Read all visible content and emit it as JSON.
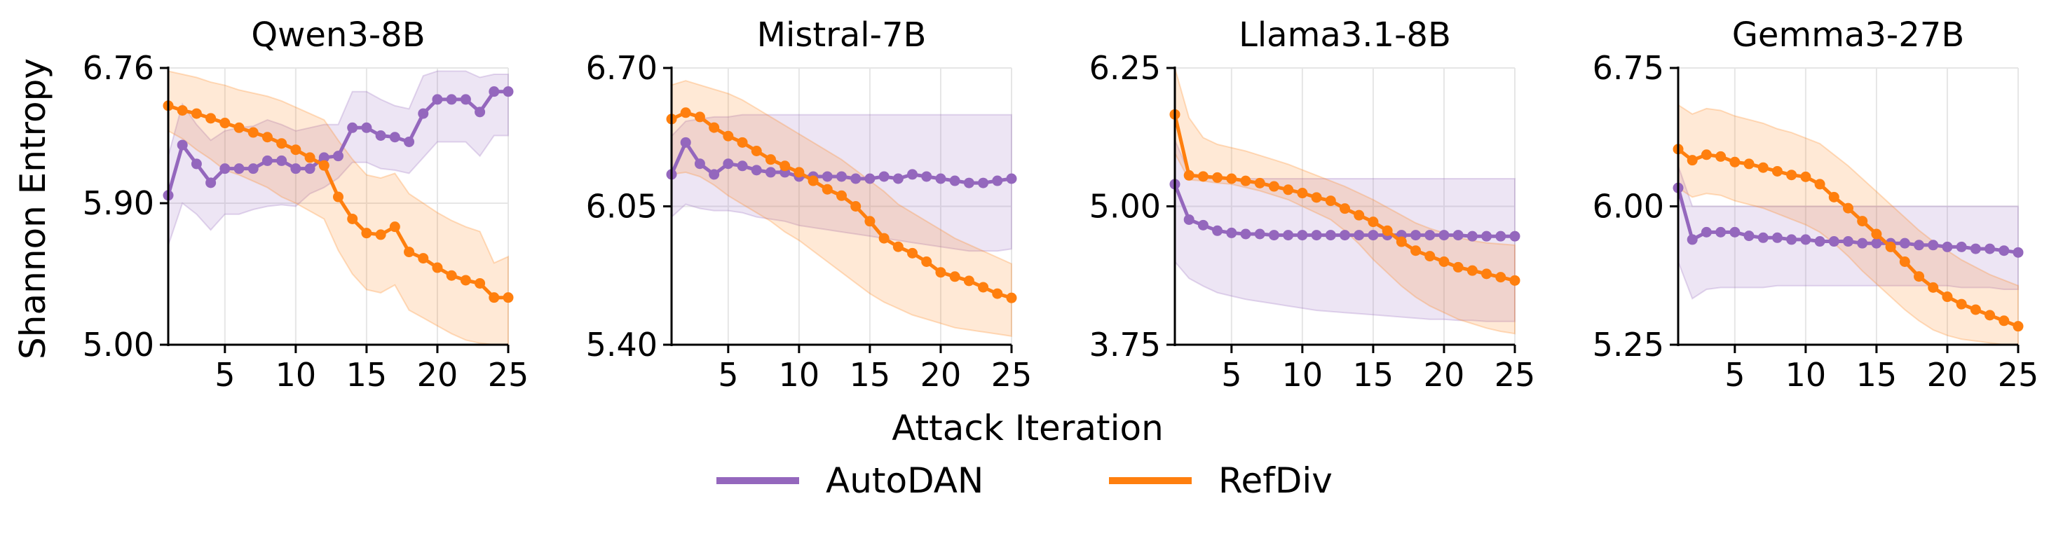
{
  "figure": {
    "ylabel": "Shannon Entropy",
    "xlabel": "Attack Iteration",
    "legend": [
      {
        "name": "AutoDAN",
        "color": "#9467bd"
      },
      {
        "name": "RefDiv",
        "color": "#ff7f0e"
      }
    ]
  },
  "colors": {
    "AutoDAN": "#9467bd",
    "RefDiv": "#ff7f0e",
    "grid": "#e6e6e6"
  },
  "chart_data": [
    {
      "type": "line",
      "title": "Qwen3-8B",
      "x": [
        1,
        2,
        3,
        4,
        5,
        6,
        7,
        8,
        9,
        10,
        11,
        12,
        13,
        14,
        15,
        16,
        17,
        18,
        19,
        20,
        21,
        22,
        23,
        24,
        25
      ],
      "xlim": [
        1,
        25
      ],
      "xticks": [
        5,
        10,
        15,
        20,
        25
      ],
      "ylim": [
        5.0,
        6.76
      ],
      "yticks": [
        5.0,
        5.9,
        6.76
      ],
      "grid": true,
      "series": [
        {
          "name": "AutoDAN",
          "values": [
            5.95,
            6.27,
            6.15,
            6.03,
            6.12,
            6.12,
            6.12,
            6.17,
            6.17,
            6.12,
            6.12,
            6.19,
            6.2,
            6.38,
            6.38,
            6.33,
            6.32,
            6.29,
            6.47,
            6.56,
            6.56,
            6.56,
            6.48,
            6.61,
            6.61
          ],
          "lower": [
            5.63,
            5.9,
            5.83,
            5.73,
            5.83,
            5.83,
            5.86,
            5.88,
            5.89,
            5.88,
            5.96,
            6.0,
            6.06,
            6.16,
            6.16,
            6.12,
            6.11,
            6.09,
            6.19,
            6.29,
            6.29,
            6.29,
            6.2,
            6.33,
            6.33
          ],
          "upper": [
            6.2,
            6.53,
            6.4,
            6.3,
            6.36,
            6.38,
            6.39,
            6.43,
            6.4,
            6.36,
            6.38,
            6.4,
            6.4,
            6.61,
            6.61,
            6.56,
            6.52,
            6.5,
            6.71,
            6.74,
            6.74,
            6.74,
            6.7,
            6.72,
            6.72
          ]
        },
        {
          "name": "RefDiv",
          "values": [
            6.52,
            6.49,
            6.47,
            6.44,
            6.41,
            6.38,
            6.35,
            6.32,
            6.28,
            6.24,
            6.19,
            6.14,
            5.94,
            5.8,
            5.71,
            5.7,
            5.75,
            5.59,
            5.55,
            5.49,
            5.44,
            5.41,
            5.39,
            5.3,
            5.3
          ],
          "lower": [
            6.36,
            6.31,
            6.24,
            6.18,
            6.11,
            6.08,
            6.04,
            6.0,
            5.94,
            5.9,
            5.85,
            5.8,
            5.6,
            5.45,
            5.35,
            5.33,
            5.38,
            5.22,
            5.17,
            5.12,
            5.07,
            5.03,
            5.01,
            5.0,
            5.0
          ],
          "upper": [
            6.74,
            6.72,
            6.7,
            6.67,
            6.65,
            6.62,
            6.6,
            6.58,
            6.55,
            6.51,
            6.47,
            6.43,
            6.3,
            6.18,
            6.08,
            6.06,
            6.09,
            5.96,
            5.9,
            5.84,
            5.79,
            5.75,
            5.72,
            5.52,
            5.56
          ]
        }
      ]
    },
    {
      "type": "line",
      "title": "Mistral-7B",
      "x": [
        1,
        2,
        3,
        4,
        5,
        6,
        7,
        8,
        9,
        10,
        11,
        12,
        13,
        14,
        15,
        16,
        17,
        18,
        19,
        20,
        21,
        22,
        23,
        24,
        25
      ],
      "xlim": [
        1,
        25
      ],
      "xticks": [
        5,
        10,
        15,
        20,
        25
      ],
      "ylim": [
        5.4,
        6.7
      ],
      "yticks": [
        5.4,
        6.05,
        6.7
      ],
      "grid": true,
      "series": [
        {
          "name": "AutoDAN",
          "values": [
            6.2,
            6.35,
            6.25,
            6.2,
            6.25,
            6.24,
            6.22,
            6.21,
            6.21,
            6.19,
            6.19,
            6.19,
            6.19,
            6.18,
            6.18,
            6.19,
            6.18,
            6.2,
            6.19,
            6.18,
            6.17,
            6.16,
            6.16,
            6.17,
            6.18
          ],
          "lower": [
            6.0,
            6.06,
            6.04,
            6.03,
            6.03,
            6.02,
            6.0,
            5.99,
            5.98,
            5.96,
            5.95,
            5.94,
            5.93,
            5.92,
            5.91,
            5.9,
            5.89,
            5.88,
            5.87,
            5.86,
            5.85,
            5.84,
            5.84,
            5.84,
            5.85
          ],
          "upper": [
            6.38,
            6.45,
            6.46,
            6.47,
            6.47,
            6.48,
            6.48,
            6.48,
            6.48,
            6.48,
            6.48,
            6.48,
            6.48,
            6.48,
            6.48,
            6.48,
            6.48,
            6.48,
            6.48,
            6.48,
            6.48,
            6.48,
            6.48,
            6.48,
            6.48
          ]
        },
        {
          "name": "RefDiv",
          "values": [
            6.46,
            6.49,
            6.47,
            6.42,
            6.38,
            6.35,
            6.31,
            6.27,
            6.24,
            6.21,
            6.17,
            6.13,
            6.1,
            6.05,
            5.98,
            5.9,
            5.86,
            5.83,
            5.79,
            5.74,
            5.72,
            5.7,
            5.67,
            5.64,
            5.62
          ],
          "lower": [
            6.2,
            6.21,
            6.19,
            6.15,
            6.1,
            6.06,
            6.02,
            5.98,
            5.93,
            5.89,
            5.84,
            5.79,
            5.74,
            5.69,
            5.64,
            5.6,
            5.57,
            5.54,
            5.52,
            5.5,
            5.48,
            5.47,
            5.46,
            5.45,
            5.44
          ],
          "upper": [
            6.62,
            6.64,
            6.62,
            6.6,
            6.58,
            6.55,
            6.51,
            6.47,
            6.43,
            6.39,
            6.35,
            6.31,
            6.27,
            6.22,
            6.17,
            6.12,
            6.06,
            6.02,
            5.98,
            5.94,
            5.9,
            5.87,
            5.84,
            5.81,
            5.78
          ]
        }
      ]
    },
    {
      "type": "line",
      "title": "Llama3.1-8B",
      "x": [
        1,
        2,
        3,
        4,
        5,
        6,
        7,
        8,
        9,
        10,
        11,
        12,
        13,
        14,
        15,
        16,
        17,
        18,
        19,
        20,
        21,
        22,
        23,
        24,
        25
      ],
      "xlim": [
        1,
        25
      ],
      "xticks": [
        5,
        10,
        15,
        20,
        25
      ],
      "ylim": [
        3.75,
        6.25
      ],
      "yticks": [
        3.75,
        5.0,
        6.25
      ],
      "grid": true,
      "series": [
        {
          "name": "AutoDAN",
          "values": [
            5.2,
            4.88,
            4.83,
            4.78,
            4.76,
            4.75,
            4.75,
            4.74,
            4.74,
            4.74,
            4.74,
            4.74,
            4.74,
            4.74,
            4.74,
            4.74,
            4.74,
            4.74,
            4.74,
            4.74,
            4.74,
            4.73,
            4.73,
            4.73,
            4.73
          ],
          "lower": [
            4.5,
            4.35,
            4.28,
            4.22,
            4.19,
            4.16,
            4.14,
            4.12,
            4.1,
            4.08,
            4.06,
            4.05,
            4.04,
            4.03,
            4.02,
            4.01,
            4.0,
            3.99,
            3.98,
            3.98,
            3.97,
            3.97,
            3.96,
            3.96,
            3.96
          ],
          "upper": [
            5.6,
            5.3,
            5.25,
            5.25,
            5.25,
            5.25,
            5.25,
            5.25,
            5.25,
            5.25,
            5.25,
            5.25,
            5.25,
            5.25,
            5.25,
            5.25,
            5.25,
            5.25,
            5.25,
            5.25,
            5.25,
            5.25,
            5.25,
            5.25,
            5.25
          ]
        },
        {
          "name": "RefDiv",
          "values": [
            5.83,
            5.28,
            5.27,
            5.26,
            5.25,
            5.23,
            5.21,
            5.18,
            5.15,
            5.12,
            5.08,
            5.05,
            4.98,
            4.92,
            4.86,
            4.78,
            4.68,
            4.6,
            4.55,
            4.5,
            4.45,
            4.42,
            4.39,
            4.36,
            4.33
          ],
          "lower": [
            5.48,
            5.24,
            5.23,
            5.21,
            5.2,
            5.17,
            5.14,
            5.1,
            5.06,
            5.0,
            4.94,
            4.88,
            4.78,
            4.66,
            4.52,
            4.4,
            4.28,
            4.18,
            4.1,
            4.04,
            3.98,
            3.94,
            3.9,
            3.87,
            3.85
          ],
          "upper": [
            6.25,
            5.8,
            5.62,
            5.56,
            5.53,
            5.5,
            5.46,
            5.42,
            5.38,
            5.33,
            5.28,
            5.23,
            5.18,
            5.12,
            5.06,
            4.99,
            4.92,
            4.85,
            4.8,
            4.76,
            4.72,
            4.69,
            4.67,
            4.66,
            4.65
          ]
        }
      ]
    },
    {
      "type": "line",
      "title": "Gemma3-27B",
      "x": [
        1,
        2,
        3,
        4,
        5,
        6,
        7,
        8,
        9,
        10,
        11,
        12,
        13,
        14,
        15,
        16,
        17,
        18,
        19,
        20,
        21,
        22,
        23,
        24,
        25
      ],
      "xlim": [
        1,
        25
      ],
      "xticks": [
        5,
        10,
        15,
        20,
        25
      ],
      "ylim": [
        5.25,
        6.75
      ],
      "yticks": [
        5.25,
        6.0,
        6.75
      ],
      "grid": true,
      "series": [
        {
          "name": "AutoDAN",
          "values": [
            6.1,
            5.82,
            5.86,
            5.86,
            5.86,
            5.84,
            5.83,
            5.83,
            5.82,
            5.82,
            5.81,
            5.81,
            5.81,
            5.8,
            5.8,
            5.8,
            5.8,
            5.79,
            5.79,
            5.78,
            5.78,
            5.77,
            5.77,
            5.76,
            5.75
          ],
          "lower": [
            5.7,
            5.5,
            5.55,
            5.56,
            5.56,
            5.56,
            5.56,
            5.57,
            5.57,
            5.57,
            5.57,
            5.57,
            5.57,
            5.57,
            5.57,
            5.57,
            5.57,
            5.57,
            5.57,
            5.57,
            5.56,
            5.56,
            5.56,
            5.55,
            5.55
          ],
          "upper": [
            6.22,
            6.0,
            6.0,
            6.0,
            6.0,
            6.0,
            6.0,
            6.0,
            6.0,
            6.0,
            6.0,
            6.0,
            6.0,
            6.0,
            6.0,
            6.0,
            6.0,
            6.0,
            6.0,
            6.0,
            6.0,
            6.0,
            6.0,
            6.0,
            6.0
          ]
        },
        {
          "name": "RefDiv",
          "values": [
            6.31,
            6.25,
            6.28,
            6.27,
            6.24,
            6.23,
            6.21,
            6.19,
            6.17,
            6.16,
            6.12,
            6.05,
            5.99,
            5.92,
            5.85,
            5.78,
            5.7,
            5.62,
            5.56,
            5.51,
            5.47,
            5.44,
            5.41,
            5.38,
            5.35
          ],
          "lower": [
            6.1,
            6.05,
            6.07,
            6.06,
            6.03,
            6.01,
            5.99,
            5.96,
            5.93,
            5.9,
            5.86,
            5.8,
            5.73,
            5.65,
            5.58,
            5.51,
            5.44,
            5.38,
            5.33,
            5.3,
            5.28,
            5.27,
            5.26,
            5.25,
            5.25
          ],
          "upper": [
            6.55,
            6.5,
            6.53,
            6.52,
            6.49,
            6.47,
            6.45,
            6.42,
            6.4,
            6.37,
            6.34,
            6.28,
            6.22,
            6.15,
            6.08,
            6.01,
            5.94,
            5.87,
            5.81,
            5.76,
            5.71,
            5.67,
            5.63,
            5.6,
            5.57
          ]
        }
      ]
    }
  ]
}
